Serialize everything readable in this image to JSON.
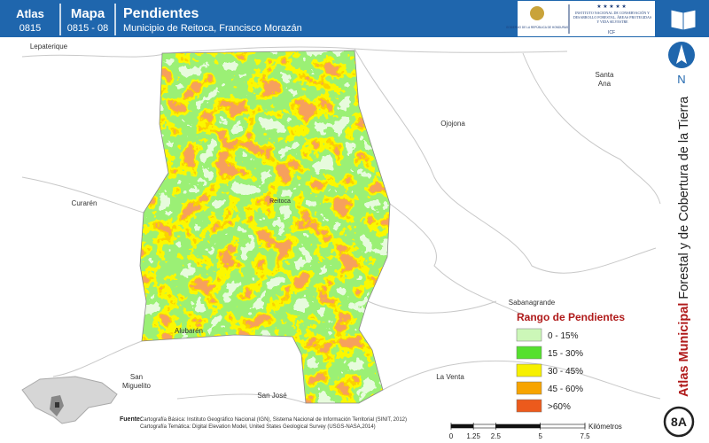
{
  "header": {
    "atlas_label": "Atlas",
    "atlas_code": "0815",
    "map_label": "Mapa",
    "map_code": "0815 - 08",
    "title": "Pendientes",
    "subtitle": "Municipio de Reitoca, Francisco Morazán"
  },
  "logos": {
    "government": "GOBIERNO DE LA REPÚBLICA DE HONDURAS",
    "institute": "INSTITUTO NACIONAL DE CONSERVACIÓN Y DESARROLLO FORESTAL, ÁREAS PROTEGIDAS Y VIDA SILVESTRE",
    "acronym": "ICF"
  },
  "sidebar": {
    "north": "N",
    "series_bold": "Atlas Municipal",
    "series_rest": "Forestal y de Cobertura de la Tierra",
    "sheet": "8A"
  },
  "map": {
    "places": [
      "Lepaterique",
      "Santa Ana",
      "Ojojona",
      "Curarén",
      "Reitoca",
      "Alubarén",
      "San Miguelito",
      "San José",
      "La Venta",
      "Sabanagrande"
    ]
  },
  "legend": {
    "title": "Rango de Pendientes",
    "items": [
      {
        "label": "0 - 15%",
        "color": "#ccf7b8"
      },
      {
        "label": "15 - 30%",
        "color": "#55e02e"
      },
      {
        "label": "30 - 45%",
        "color": "#f7f000"
      },
      {
        "label": "45 - 60%",
        "color": "#f7a400"
      },
      {
        "label": ">60%",
        "color": "#ec5a1c"
      }
    ]
  },
  "scale": {
    "ticks": [
      0,
      1.25,
      2.5,
      5,
      7.5
    ],
    "unit": "Kilómetros"
  },
  "source": {
    "label": "Fuente:",
    "lines": [
      "Cartografía Básica: Instituto Geográfico Nacional (IGN), Sistema Nacional de Información Territorial (SINIT, 2012)",
      "Cartografía Temática: Digital Elevation Model, United States Geological Survey (USGS-NASA,2014)"
    ]
  }
}
